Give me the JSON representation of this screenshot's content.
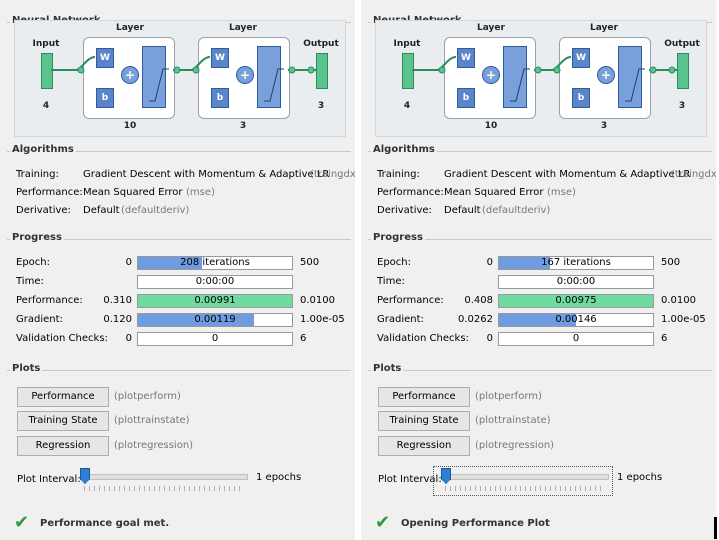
{
  "panels": [
    {
      "network": {
        "title": "Neural Network",
        "input_label": "Input",
        "input_size": "4",
        "output_label": "Output",
        "output_size": "3",
        "layer1_label": "Layer",
        "layer1_size": "10",
        "layer2_label": "Layer",
        "layer2_size": "3",
        "w": "W",
        "b": "b",
        "plus": "+"
      },
      "algorithms": {
        "title": "Algorithms",
        "training_label": "Training:",
        "training_value": "Gradient Descent with Momentum & Adaptive LR",
        "training_fn": "(traingdx)",
        "performance_label": "Performance:",
        "performance_value": "Mean Squared Error",
        "performance_fn": "(mse)",
        "derivative_label": "Derivative:",
        "derivative_value": "Default",
        "derivative_fn": "(defaultderiv)"
      },
      "progress": {
        "title": "Progress",
        "rows": [
          {
            "label": "Epoch:",
            "start": "0",
            "bar_text": "208 iterations",
            "end": "500",
            "fill": 0.416,
            "color": "#6f9be0"
          },
          {
            "label": "Time:",
            "start": "",
            "bar_text": "0:00:00",
            "end": "",
            "fill": 0,
            "color": "#6f9be0"
          },
          {
            "label": "Performance:",
            "start": "0.310",
            "bar_text": "0.00991",
            "end": "0.0100",
            "fill": 1.0,
            "color": "#6fdc9f"
          },
          {
            "label": "Gradient:",
            "start": "0.120",
            "bar_text": "0.00119",
            "end": "1.00e-05",
            "fill": 0.75,
            "color": "#6f9be0"
          },
          {
            "label": "Validation Checks:",
            "start": "0",
            "bar_text": "0",
            "end": "6",
            "fill": 0,
            "color": "#6f9be0"
          }
        ]
      },
      "plots": {
        "title": "Plots",
        "buttons": [
          {
            "label": "Performance",
            "fn": "(plotperform)"
          },
          {
            "label": "Training State",
            "fn": "(plottrainstate)"
          },
          {
            "label": "Regression",
            "fn": "(plotregression)"
          }
        ],
        "interval_label": "Plot Interval:",
        "interval_value": "1 epochs",
        "interval_level": 0
      },
      "status": "Performance goal met."
    },
    {
      "network": {
        "title": "Neural Network",
        "input_label": "Input",
        "input_size": "4",
        "output_label": "Output",
        "output_size": "3",
        "layer1_label": "Layer",
        "layer1_size": "10",
        "layer2_label": "Layer",
        "layer2_size": "3",
        "w": "W",
        "b": "b",
        "plus": "+"
      },
      "algorithms": {
        "title": "Algorithms",
        "training_label": "Training:",
        "training_value": "Gradient Descent with Momentum & Adaptive LR",
        "training_fn": "(traingdx)",
        "performance_label": "Performance:",
        "performance_value": "Mean Squared Error",
        "performance_fn": "(mse)",
        "derivative_label": "Derivative:",
        "derivative_value": "Default",
        "derivative_fn": "(defaultderiv)"
      },
      "progress": {
        "title": "Progress",
        "rows": [
          {
            "label": "Epoch:",
            "start": "0",
            "bar_text": "167 iterations",
            "end": "500",
            "fill": 0.334,
            "color": "#6f9be0"
          },
          {
            "label": "Time:",
            "start": "",
            "bar_text": "0:00:00",
            "end": "",
            "fill": 0,
            "color": "#6f9be0"
          },
          {
            "label": "Performance:",
            "start": "0.408",
            "bar_text": "0.00975",
            "end": "0.0100",
            "fill": 1.0,
            "color": "#6fdc9f"
          },
          {
            "label": "Gradient:",
            "start": "0.0262",
            "bar_text": "0.00146",
            "end": "1.00e-05",
            "fill": 0.5,
            "color": "#6f9be0"
          },
          {
            "label": "Validation Checks:",
            "start": "0",
            "bar_text": "0",
            "end": "6",
            "fill": 0,
            "color": "#6f9be0"
          }
        ]
      },
      "plots": {
        "title": "Plots",
        "buttons": [
          {
            "label": "Performance",
            "fn": "(plotperform)"
          },
          {
            "label": "Training State",
            "fn": "(plottrainstate)"
          },
          {
            "label": "Regression",
            "fn": "(plotregression)"
          }
        ],
        "interval_label": "Plot Interval:",
        "interval_value": "1 epochs",
        "interval_level": 0
      },
      "status": "Opening Performance Plot"
    }
  ]
}
